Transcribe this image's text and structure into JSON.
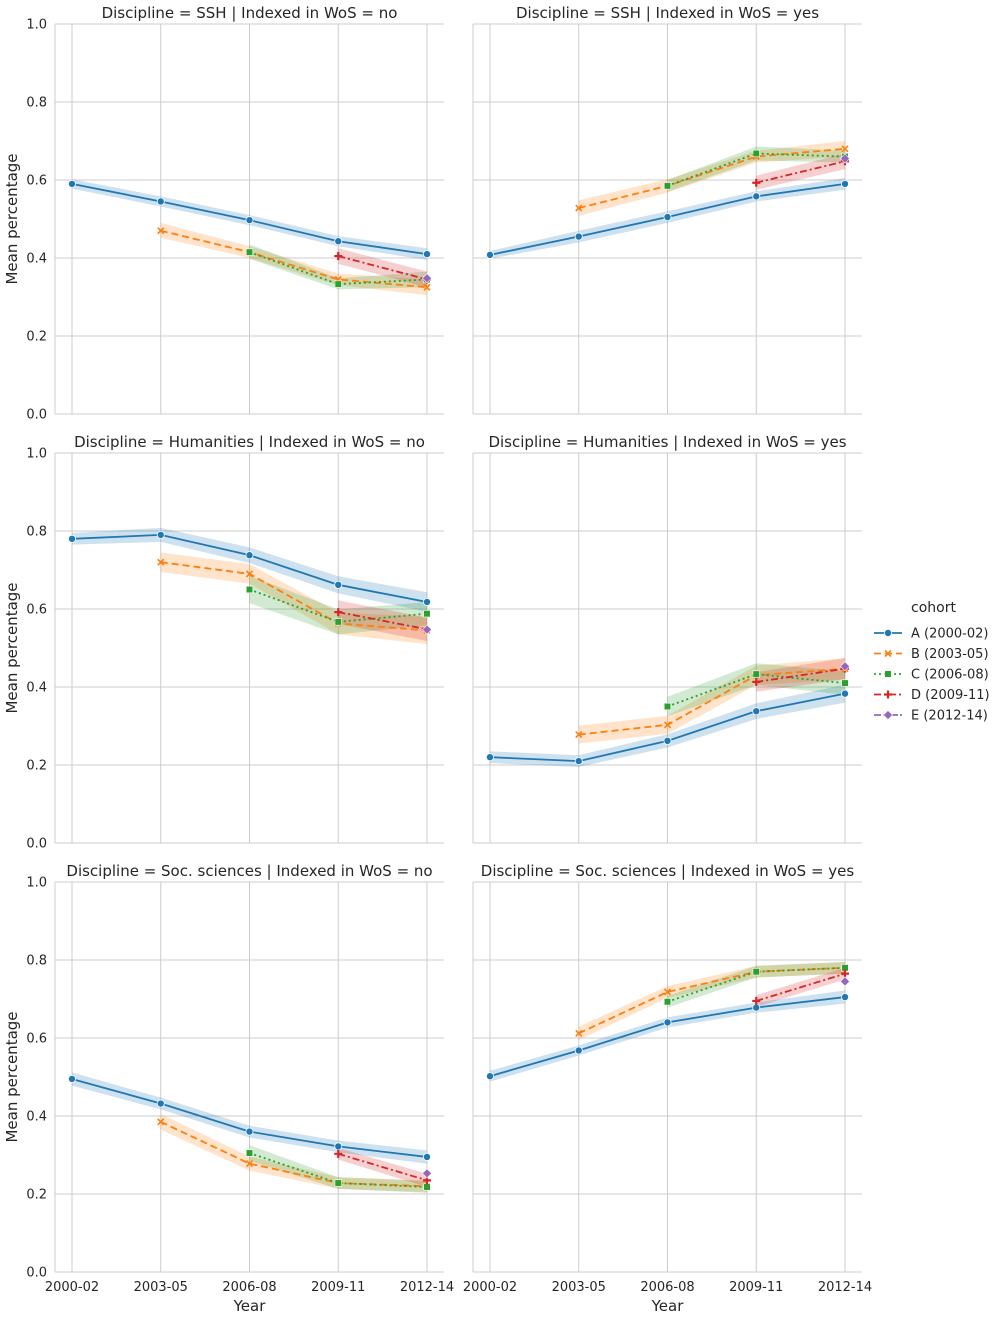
{
  "chart_data": {
    "type": "line",
    "layout": "facet-grid",
    "x": [
      "2000-02",
      "2003-05",
      "2006-08",
      "2009-11",
      "2012-14"
    ],
    "xlabel": "Year",
    "ylabel": "Mean percentage",
    "ylim": [
      0,
      1
    ],
    "yticks": [
      "0.0",
      "0.2",
      "0.4",
      "0.6",
      "0.8",
      "1.0"
    ],
    "grid": true,
    "legend": {
      "title": "cohort",
      "placement": "right",
      "entries": [
        {
          "name": "A (2000-02)",
          "color": "#1f77b4",
          "marker": "circle",
          "dash": "solid"
        },
        {
          "name": "B (2003-05)",
          "color": "#ff7f0e",
          "marker": "x",
          "dash": "dashed"
        },
        {
          "name": "C (2006-08)",
          "color": "#2ca02c",
          "marker": "square",
          "dash": "dotted"
        },
        {
          "name": "D (2009-11)",
          "color": "#d62728",
          "marker": "plus",
          "dash": "dashdot"
        },
        {
          "name": "E (2012-14)",
          "color": "#9467bd",
          "marker": "diamond",
          "dash": "dashdotdot"
        }
      ]
    },
    "panels": [
      {
        "title": "Discipline = SSH | Indexed in WoS = no",
        "series": [
          {
            "name": "A (2000-02)",
            "values": [
              0.59,
              0.545,
              0.497,
              0.443,
              0.41
            ],
            "ci": [
              [
                0.578,
                0.602
              ],
              [
                0.532,
                0.558
              ],
              [
                0.484,
                0.51
              ],
              [
                0.43,
                0.456
              ],
              [
                0.395,
                0.425
              ]
            ]
          },
          {
            "name": "B (2003-05)",
            "values": [
              null,
              0.47,
              0.415,
              0.345,
              0.325
            ],
            "ci": [
              null,
              [
                0.452,
                0.49
              ],
              [
                0.4,
                0.43
              ],
              [
                0.33,
                0.36
              ],
              [
                0.305,
                0.345
              ]
            ]
          },
          {
            "name": "C (2006-08)",
            "values": [
              null,
              null,
              0.415,
              0.333,
              0.345
            ],
            "ci": [
              null,
              null,
              [
                0.398,
                0.435
              ],
              [
                0.32,
                0.348
              ],
              [
                0.325,
                0.365
              ]
            ]
          },
          {
            "name": "D (2009-11)",
            "values": [
              null,
              null,
              null,
              0.405,
              0.345
            ],
            "ci": [
              null,
              null,
              null,
              [
                0.385,
                0.425
              ],
              [
                0.325,
                0.365
              ]
            ]
          },
          {
            "name": "E (2012-14)",
            "values": [
              null,
              null,
              null,
              null,
              0.348
            ],
            "ci": [
              null,
              null,
              null,
              null,
              null
            ]
          }
        ]
      },
      {
        "title": "Discipline = SSH | Indexed in WoS = yes",
        "series": [
          {
            "name": "A (2000-02)",
            "values": [
              0.408,
              0.455,
              0.505,
              0.558,
              0.59
            ],
            "ci": [
              [
                0.398,
                0.418
              ],
              [
                0.44,
                0.47
              ],
              [
                0.49,
                0.52
              ],
              [
                0.545,
                0.571
              ],
              [
                0.575,
                0.605
              ]
            ]
          },
          {
            "name": "B (2003-05)",
            "values": [
              null,
              0.528,
              0.585,
              0.66,
              0.68
            ],
            "ci": [
              null,
              [
                0.508,
                0.548
              ],
              [
                0.568,
                0.602
              ],
              [
                0.645,
                0.675
              ],
              [
                0.66,
                0.7
              ]
            ]
          },
          {
            "name": "C (2006-08)",
            "values": [
              null,
              null,
              0.585,
              0.668,
              0.66
            ],
            "ci": [
              null,
              null,
              [
                0.57,
                0.6
              ],
              [
                0.65,
                0.686
              ],
              [
                0.645,
                0.675
              ]
            ]
          },
          {
            "name": "D (2009-11)",
            "values": [
              null,
              null,
              null,
              0.593,
              0.648
            ],
            "ci": [
              null,
              null,
              null,
              [
                0.575,
                0.611
              ],
              [
                0.628,
                0.668
              ]
            ]
          },
          {
            "name": "E (2012-14)",
            "values": [
              null,
              null,
              null,
              null,
              0.655
            ],
            "ci": [
              null,
              null,
              null,
              null,
              null
            ]
          }
        ]
      },
      {
        "title": "Discipline = Humanities | Indexed in WoS = no",
        "series": [
          {
            "name": "A (2000-02)",
            "values": [
              0.78,
              0.79,
              0.738,
              0.662,
              0.618
            ],
            "ci": [
              [
                0.765,
                0.795
              ],
              [
                0.772,
                0.808
              ],
              [
                0.718,
                0.758
              ],
              [
                0.64,
                0.684
              ],
              [
                0.593,
                0.643
              ]
            ]
          },
          {
            "name": "B (2003-05)",
            "values": [
              null,
              0.72,
              0.69,
              0.563,
              0.545
            ],
            "ci": [
              null,
              [
                0.695,
                0.745
              ],
              [
                0.665,
                0.715
              ],
              [
                0.535,
                0.591
              ],
              [
                0.51,
                0.58
              ]
            ]
          },
          {
            "name": "C (2006-08)",
            "values": [
              null,
              null,
              0.65,
              0.567,
              0.588
            ],
            "ci": [
              null,
              null,
              [
                0.615,
                0.685
              ],
              [
                0.535,
                0.599
              ],
              [
                0.558,
                0.618
              ]
            ]
          },
          {
            "name": "D (2009-11)",
            "values": [
              null,
              null,
              null,
              0.592,
              0.548
            ],
            "ci": [
              null,
              null,
              null,
              [
                0.562,
                0.622
              ],
              [
                0.518,
                0.578
              ]
            ]
          },
          {
            "name": "E (2012-14)",
            "values": [
              null,
              null,
              null,
              null,
              0.547
            ],
            "ci": [
              null,
              null,
              null,
              null,
              null
            ]
          }
        ]
      },
      {
        "title": "Discipline = Humanities | Indexed in WoS = yes",
        "series": [
          {
            "name": "A (2000-02)",
            "values": [
              0.22,
              0.21,
              0.262,
              0.338,
              0.383
            ],
            "ci": [
              [
                0.205,
                0.235
              ],
              [
                0.195,
                0.225
              ],
              [
                0.245,
                0.279
              ],
              [
                0.318,
                0.358
              ],
              [
                0.36,
                0.406
              ]
            ]
          },
          {
            "name": "B (2003-05)",
            "values": [
              null,
              0.278,
              0.303,
              0.43,
              0.447
            ],
            "ci": [
              null,
              [
                0.255,
                0.301
              ],
              [
                0.28,
                0.326
              ],
              [
                0.405,
                0.455
              ],
              [
                0.42,
                0.474
              ]
            ]
          },
          {
            "name": "C (2006-08)",
            "values": [
              null,
              null,
              0.35,
              0.433,
              0.41
            ],
            "ci": [
              null,
              null,
              [
                0.325,
                0.375
              ],
              [
                0.405,
                0.461
              ],
              [
                0.38,
                0.44
              ]
            ]
          },
          {
            "name": "D (2009-11)",
            "values": [
              null,
              null,
              null,
              0.413,
              0.447
            ],
            "ci": [
              null,
              null,
              null,
              [
                0.388,
                0.438
              ],
              [
                0.42,
                0.474
              ]
            ]
          },
          {
            "name": "E (2012-14)",
            "values": [
              null,
              null,
              null,
              null,
              0.453
            ],
            "ci": [
              null,
              null,
              null,
              null,
              null
            ]
          }
        ]
      },
      {
        "title": "Discipline = Soc. sciences | Indexed in WoS = no",
        "series": [
          {
            "name": "A (2000-02)",
            "values": [
              0.495,
              0.432,
              0.36,
              0.322,
              0.295
            ],
            "ci": [
              [
                0.478,
                0.512
              ],
              [
                0.417,
                0.447
              ],
              [
                0.345,
                0.375
              ],
              [
                0.307,
                0.337
              ],
              [
                0.278,
                0.312
              ]
            ]
          },
          {
            "name": "B (2003-05)",
            "values": [
              null,
              0.385,
              0.278,
              0.228,
              0.22
            ],
            "ci": [
              null,
              [
                0.365,
                0.405
              ],
              [
                0.26,
                0.296
              ],
              [
                0.213,
                0.243
              ],
              [
                0.205,
                0.235
              ]
            ]
          },
          {
            "name": "C (2006-08)",
            "values": [
              null,
              null,
              0.305,
              0.228,
              0.218
            ],
            "ci": [
              null,
              null,
              [
                0.285,
                0.325
              ],
              [
                0.213,
                0.243
              ],
              [
                0.203,
                0.233
              ]
            ]
          },
          {
            "name": "D (2009-11)",
            "values": [
              null,
              null,
              null,
              0.303,
              0.235
            ],
            "ci": [
              null,
              null,
              null,
              [
                0.288,
                0.318
              ],
              [
                0.218,
                0.252
              ]
            ]
          },
          {
            "name": "E (2012-14)",
            "values": [
              null,
              null,
              null,
              null,
              0.253
            ],
            "ci": [
              null,
              null,
              null,
              null,
              null
            ]
          }
        ]
      },
      {
        "title": "Discipline = Soc. sciences | Indexed in WoS = yes",
        "series": [
          {
            "name": "A (2000-02)",
            "values": [
              0.502,
              0.568,
              0.64,
              0.678,
              0.705
            ],
            "ci": [
              [
                0.488,
                0.516
              ],
              [
                0.555,
                0.581
              ],
              [
                0.627,
                0.653
              ],
              [
                0.665,
                0.691
              ],
              [
                0.688,
                0.722
              ]
            ]
          },
          {
            "name": "B (2003-05)",
            "values": [
              null,
              0.612,
              0.718,
              0.77,
              0.78
            ],
            "ci": [
              null,
              [
                0.595,
                0.629
              ],
              [
                0.703,
                0.733
              ],
              [
                0.755,
                0.785
              ],
              [
                0.765,
                0.795
              ]
            ]
          },
          {
            "name": "C (2006-08)",
            "values": [
              null,
              null,
              0.693,
              0.77,
              0.78
            ],
            "ci": [
              null,
              null,
              [
                0.678,
                0.708
              ],
              [
                0.755,
                0.785
              ],
              [
                0.765,
                0.795
              ]
            ]
          },
          {
            "name": "D (2009-11)",
            "values": [
              null,
              null,
              null,
              0.695,
              0.765
            ],
            "ci": [
              null,
              null,
              null,
              [
                0.68,
                0.71
              ],
              [
                0.75,
                0.78
              ]
            ]
          },
          {
            "name": "E (2012-14)",
            "values": [
              null,
              null,
              null,
              null,
              0.745
            ],
            "ci": [
              null,
              null,
              null,
              null,
              null
            ]
          }
        ]
      }
    ]
  }
}
